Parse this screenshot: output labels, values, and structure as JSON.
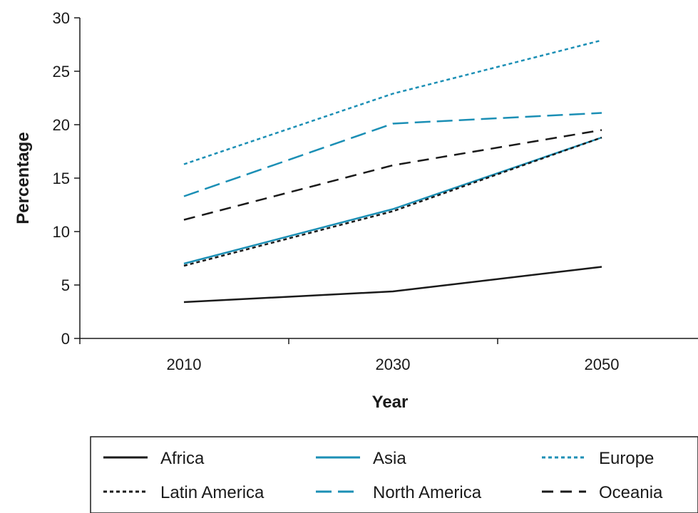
{
  "chart_data": {
    "type": "line",
    "title": "",
    "xlabel": "Year",
    "ylabel": "Percentage",
    "categories": [
      "2010",
      "2030",
      "2050"
    ],
    "ylim": [
      0,
      30
    ],
    "yticks": [
      0,
      5,
      10,
      15,
      20,
      25,
      30
    ],
    "grid": false,
    "legend_position": "bottom",
    "series": [
      {
        "name": "Africa",
        "values": [
          3.4,
          4.4,
          6.7
        ],
        "color": "#1a1a1a",
        "dash": "solid"
      },
      {
        "name": "Asia",
        "values": [
          7.0,
          12.1,
          18.8
        ],
        "color": "#1b8fb5",
        "dash": "solid"
      },
      {
        "name": "Europe",
        "values": [
          16.3,
          22.9,
          27.9
        ],
        "color": "#1b8fb5",
        "dash": "dotted"
      },
      {
        "name": "Latin America",
        "values": [
          6.8,
          11.9,
          18.8
        ],
        "color": "#1a1a1a",
        "dash": "dotted"
      },
      {
        "name": "North America",
        "values": [
          13.3,
          20.1,
          21.1
        ],
        "color": "#1b8fb5",
        "dash": "dashed"
      },
      {
        "name": "Oceania",
        "values": [
          11.1,
          16.2,
          19.5
        ],
        "color": "#1a1a1a",
        "dash": "longdash"
      }
    ]
  }
}
